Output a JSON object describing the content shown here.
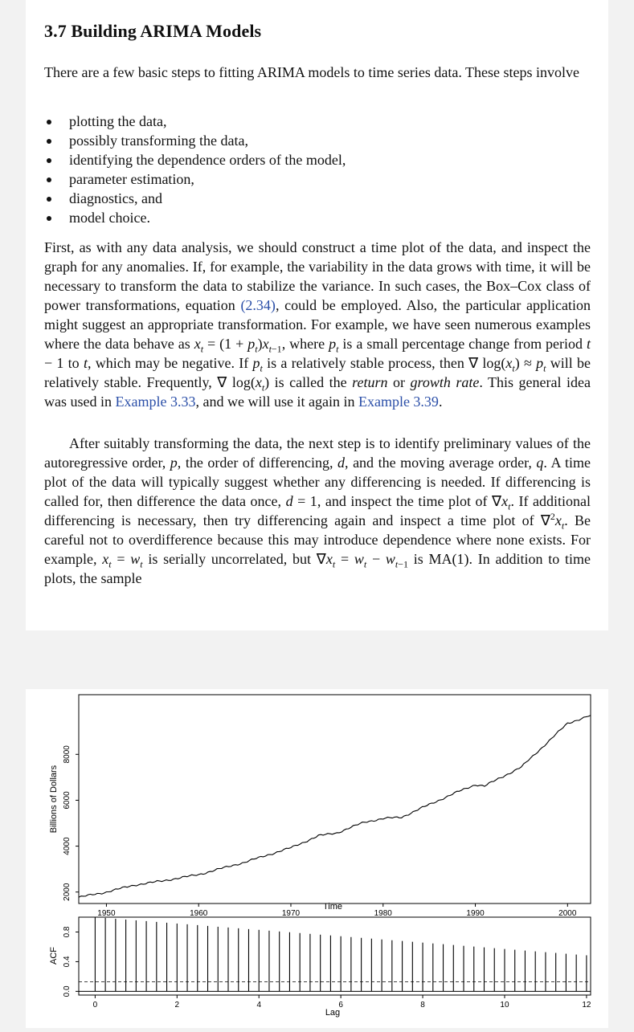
{
  "section": {
    "title": "3.7 Building ARIMA Models",
    "intro": "There are a few basic steps to fitting ARIMA models to time series data. These steps involve",
    "steps": [
      "plotting the data,",
      "possibly transforming the data,",
      "identifying the dependence orders of the model,",
      "parameter estimation,",
      "diagnostics, and",
      "model choice."
    ],
    "paragraph1": {
      "s1": "First, as with any data analysis, we should construct a time plot of the data, and inspect the graph for any anomalies. If, for example, the variability in the data grows with time, it will be necessary to transform the data to stabilize the variance. In such cases, the Box–Cox class of power transformations, equation ",
      "eq_ref": "(2.34)",
      "s2": ", could be employed. Also, the particular application might suggest an appropriate transformation. For example, we have seen numerous examples where the data behave as ",
      "s3": ", where ",
      "s4": " is a small percentage change from period ",
      "s5": ", which may be negative. If ",
      "s6": " is a relatively stable process, then ",
      "s7": " will be relatively stable. Frequently, ",
      "s8": " is called the ",
      "return_word": "return",
      "or_word": " or ",
      "growth_word": "growth rate",
      "s9": ". This general idea was used in ",
      "ex_ref1": "Example 3.33",
      "s10": ", and we will use it again in ",
      "ex_ref2": "Example 3.39",
      "s11": "."
    },
    "paragraph2": {
      "s1": "After suitably transforming the data, the next step is to identify preliminary values of the autoregressive order, ",
      "s2": ", the order of differencing, ",
      "s3": ", and the moving average order, ",
      "s4": ". A time plot of the data will typically suggest whether any differencing is needed. If differencing is called for, then difference the data once, ",
      "s5": ", and inspect the time plot of ",
      "s6": ". If additional differencing is necessary, then try differencing again and inspect a time plot of ",
      "s7": ". Be careful not to overdifference because this may introduce dependence where none exists. For example, ",
      "s8": " is serially uncorrelated, but ",
      "s9": " is MA(1). In addition to time plots, the sample"
    }
  },
  "chart_data": [
    {
      "type": "line",
      "ylabel": "Billions of Dollars",
      "xlabel": "Time",
      "xlim": [
        1947,
        2002.5
      ],
      "ylim": [
        1500,
        10600
      ],
      "xticks": [
        1950,
        1960,
        1970,
        1980,
        1990,
        2000
      ],
      "yticks": [
        2000,
        4000,
        6000,
        8000
      ],
      "x": [
        1947,
        1950,
        1953,
        1956,
        1960,
        1965,
        1970,
        1973,
        1975,
        1978,
        1980,
        1982,
        1984,
        1988,
        1990,
        1991,
        1995,
        2000,
        2002.5
      ],
      "values": [
        1770,
        2000,
        2300,
        2480,
        2760,
        3300,
        3930,
        4450,
        4580,
        5050,
        5200,
        5260,
        5630,
        6350,
        6680,
        6620,
        7450,
        9350,
        9700
      ]
    },
    {
      "type": "bar",
      "ylabel": "ACF",
      "xlabel": "Lag",
      "xlim": [
        -0.4,
        12.1
      ],
      "ylim": [
        -0.05,
        1.0
      ],
      "xticks": [
        0,
        2,
        4,
        6,
        8,
        10,
        12
      ],
      "yticks": [
        "0.0",
        "0.4",
        "0.8"
      ],
      "lag_step": 0.25,
      "values": [
        1.0,
        0.99,
        0.979,
        0.968,
        0.957,
        0.947,
        0.936,
        0.925,
        0.914,
        0.904,
        0.893,
        0.882,
        0.871,
        0.861,
        0.85,
        0.839,
        0.829,
        0.818,
        0.807,
        0.797,
        0.786,
        0.775,
        0.764,
        0.754,
        0.743,
        0.732,
        0.721,
        0.711,
        0.7,
        0.689,
        0.679,
        0.668,
        0.657,
        0.646,
        0.636,
        0.625,
        0.614,
        0.604,
        0.593,
        0.582,
        0.571,
        0.561,
        0.55,
        0.539,
        0.528,
        0.518,
        0.507,
        0.496,
        0.486
      ],
      "confidence_bound": 0.13
    }
  ]
}
